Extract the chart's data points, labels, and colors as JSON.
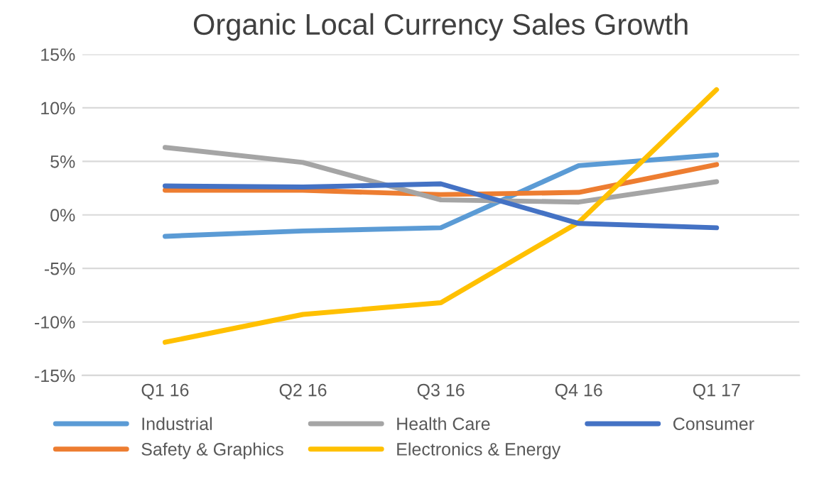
{
  "chart_data": {
    "type": "line",
    "title": "Organic Local Currency Sales Growth",
    "categories": [
      "Q1 16",
      "Q2 16",
      "Q3 16",
      "Q4 16",
      "Q1 17"
    ],
    "series": [
      {
        "name": "Industrial",
        "color": "#5b9bd5",
        "values": [
          -2.0,
          -1.5,
          -1.2,
          4.6,
          5.6
        ]
      },
      {
        "name": "Safety & Graphics",
        "color": "#ed7d31",
        "values": [
          2.3,
          2.3,
          1.9,
          2.1,
          4.7
        ]
      },
      {
        "name": "Health Care",
        "color": "#a5a5a5",
        "values": [
          6.3,
          4.9,
          1.4,
          1.2,
          3.1
        ]
      },
      {
        "name": "Electronics & Energy",
        "color": "#ffc000",
        "values": [
          -11.9,
          -9.3,
          -8.2,
          -0.7,
          11.7
        ]
      },
      {
        "name": "Consumer",
        "color": "#4472c4",
        "values": [
          2.7,
          2.6,
          2.9,
          -0.8,
          -1.2
        ]
      }
    ],
    "ylim": [
      -15,
      15
    ],
    "yticks": [
      {
        "value": -15,
        "label": "-15%"
      },
      {
        "value": -10,
        "label": "-10%"
      },
      {
        "value": -5,
        "label": "-5%"
      },
      {
        "value": 0,
        "label": "0%"
      },
      {
        "value": 5,
        "label": "5%"
      },
      {
        "value": 10,
        "label": "10%"
      },
      {
        "value": 15,
        "label": "15%"
      }
    ],
    "grid": "y",
    "legend": "bottom",
    "marker": "none",
    "line_style": "solid"
  }
}
